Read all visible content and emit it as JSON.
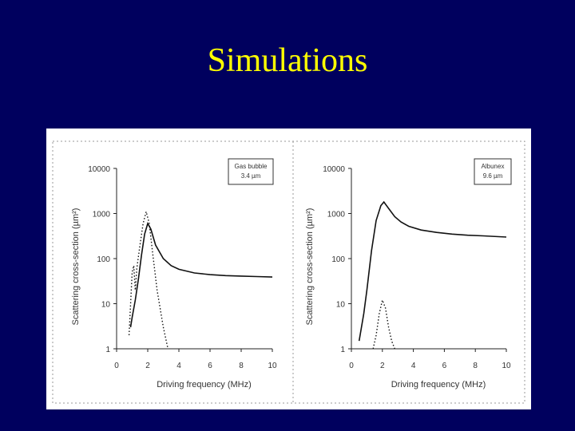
{
  "slide": {
    "title": "Simulations"
  },
  "colors": {
    "background": "#00005e",
    "title": "#ffff00",
    "figure_bg": "#ffffff",
    "line": "#111111"
  },
  "chart_data": [
    {
      "type": "line",
      "xlabel": "Driving frequency (MHz)",
      "ylabel": "Scattering cross-section (µm²)",
      "xlim": [
        0,
        10
      ],
      "ylim": [
        1,
        10000
      ],
      "yscale": "log",
      "xticks": [
        "0",
        "2",
        "4",
        "6",
        "8",
        "10"
      ],
      "yticks": [
        "1",
        "10",
        "100",
        "1000",
        "10000"
      ],
      "legend": [
        "Gas bubble",
        "3.4 µm"
      ],
      "legend_position": "top-right",
      "series": [
        {
          "style": "solid",
          "x": [
            0.9,
            1.0,
            1.2,
            1.4,
            1.6,
            1.8,
            2.0,
            2.2,
            2.5,
            3.0,
            3.5,
            4.0,
            5.0,
            6.0,
            7.0,
            8.0,
            9.0,
            10.0
          ],
          "y": [
            3,
            5,
            12,
            35,
            120,
            350,
            600,
            450,
            200,
            100,
            70,
            58,
            48,
            44,
            42,
            41,
            40,
            39
          ]
        },
        {
          "style": "dotted",
          "x": [
            0.8,
            1.0,
            1.1,
            1.2,
            1.3,
            1.5,
            1.7,
            1.9,
            2.1,
            2.3,
            2.6,
            3.0,
            3.3
          ],
          "y": [
            2,
            50,
            70,
            20,
            60,
            200,
            600,
            1100,
            600,
            150,
            20,
            3,
            1
          ]
        }
      ]
    },
    {
      "type": "line",
      "xlabel": "Driving frequency (MHz)",
      "ylabel": "Scattering cross-section (µm²)",
      "xlim": [
        0,
        10
      ],
      "ylim": [
        1,
        10000
      ],
      "yscale": "log",
      "xticks": [
        "0",
        "2",
        "4",
        "6",
        "8",
        "10"
      ],
      "yticks": [
        "1",
        "10",
        "100",
        "1000",
        "10000"
      ],
      "legend": [
        "Albunex",
        "9.6 µm"
      ],
      "legend_position": "top-right",
      "series": [
        {
          "style": "solid",
          "x": [
            0.5,
            0.8,
            1.0,
            1.3,
            1.6,
            1.9,
            2.1,
            2.4,
            2.8,
            3.2,
            3.7,
            4.5,
            5.5,
            6.5,
            7.5,
            8.5,
            10.0
          ],
          "y": [
            1.5,
            6,
            20,
            150,
            700,
            1500,
            1800,
            1300,
            850,
            650,
            520,
            430,
            380,
            350,
            330,
            320,
            300
          ]
        },
        {
          "style": "dotted",
          "x": [
            1.4,
            1.6,
            1.8,
            2.0,
            2.2,
            2.4,
            2.6,
            2.8
          ],
          "y": [
            1,
            2,
            6,
            12,
            8,
            3,
            1.5,
            1
          ]
        }
      ]
    }
  ]
}
